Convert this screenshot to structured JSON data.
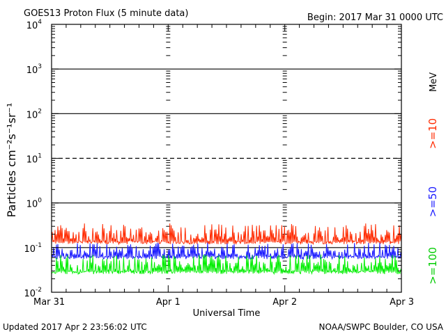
{
  "chart_data": {
    "type": "line",
    "title": "GOES13 Proton Flux (5 minute data)",
    "begin_label": "Begin: 2017 Mar 31 0000 UTC",
    "ylabel": "Particles cm⁻²s⁻¹sr⁻¹",
    "xlabel": "Universal Time",
    "y_scale": "log",
    "ylim": [
      0.01,
      10000
    ],
    "y_ticks": [
      {
        "base": "10",
        "exp": "-2"
      },
      {
        "base": "10",
        "exp": "-1"
      },
      {
        "base": "10",
        "exp": "0"
      },
      {
        "base": "10",
        "exp": "1"
      },
      {
        "base": "10",
        "exp": "2"
      },
      {
        "base": "10",
        "exp": "3"
      },
      {
        "base": "10",
        "exp": "4"
      }
    ],
    "x_ticks": [
      "Mar 31",
      "Apr 1",
      "Apr 2",
      "Apr 3"
    ],
    "xlim_days": [
      0,
      3
    ],
    "reference_lines": [
      {
        "value": 1000,
        "style": "solid"
      },
      {
        "value": 100,
        "style": "solid"
      },
      {
        "value": 10,
        "style": "dashed"
      },
      {
        "value": 1,
        "style": "solid"
      },
      {
        "value": 0.1,
        "style": "solid"
      }
    ],
    "series": [
      {
        "name": ">=10",
        "color": "#ff2a00",
        "baseline": 0.14,
        "spike_max": 0.35
      },
      {
        "name": ">=50",
        "color": "#1a1aff",
        "baseline": 0.065,
        "spike_max": 0.13
      },
      {
        "name": ">=100",
        "color": "#00ee00",
        "baseline": 0.03,
        "spike_max": 0.07
      }
    ],
    "unit_label": "MeV"
  },
  "footer": {
    "updated": "Updated 2017 Apr  2 23:56:02 UTC",
    "source": "NOAA/SWPC Boulder, CO USA"
  }
}
